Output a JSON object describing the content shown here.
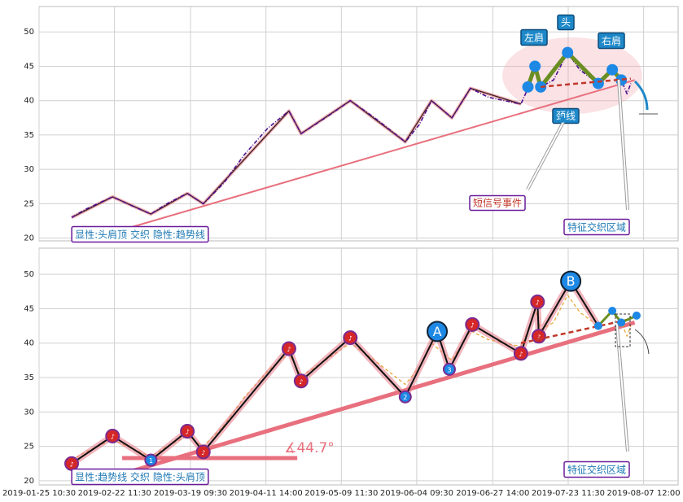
{
  "chart_data": [
    {
      "type": "line",
      "xlim": [
        0,
        100
      ],
      "ylim": [
        19.6,
        53.7
      ],
      "yticks": [
        20,
        25,
        30,
        35,
        40,
        45,
        50
      ],
      "grid": true,
      "series": [
        {
          "style": "trend",
          "color": "#e8707e",
          "x": [
            13,
            93.2
          ],
          "values": [
            21.2,
            43
          ]
        },
        {
          "style": "zigzag",
          "color": "#3a1f1f",
          "x": [
            5.1,
            11.5,
            17.5,
            23.2,
            25.7,
            39.1,
            41,
            48.7,
            57.3,
            61.4,
            64.6,
            67.5,
            75.4
          ],
          "values": [
            23,
            26,
            23.5,
            26.5,
            25,
            38.5,
            35.2,
            40,
            34,
            40,
            37.5,
            41.8,
            39.5
          ]
        },
        {
          "style": "price",
          "color": "#4b0f8c",
          "x": [
            5.1,
            7.3,
            11.5,
            14.3,
            17.5,
            20,
            23.2,
            25.7,
            28.9,
            32,
            35.8,
            39.1,
            41,
            44.8,
            48.7,
            52.5,
            57.3,
            59.5,
            61.4,
            64.6,
            67.5,
            70.3,
            75.4,
            76.6,
            77.6,
            78.5,
            80.5,
            82.7,
            84.6,
            87.5,
            89.7,
            91.1,
            92,
            92.6
          ],
          "values": [
            23,
            24.2,
            26,
            24.8,
            23.5,
            25,
            26.5,
            25,
            28,
            32,
            36,
            38.5,
            35.2,
            37.5,
            40,
            37.5,
            34,
            36.5,
            40,
            37.5,
            41.8,
            40.5,
            39.5,
            42,
            45,
            42,
            43,
            47,
            44.5,
            42.5,
            44.5,
            43,
            41,
            42.5
          ]
        },
        {
          "style": "pattern",
          "color": "#6b8e23",
          "x": [
            76.5,
            77.6,
            78.5,
            82.7,
            87.5,
            89.7,
            91.1
          ],
          "values": [
            42,
            45,
            42,
            47,
            42.5,
            44.5,
            43
          ]
        },
        {
          "style": "neckline",
          "color": "#c0392b",
          "x": [
            78.5,
            92.6
          ],
          "values": [
            42,
            43.2
          ]
        }
      ],
      "annotations": [
        {
          "text": "显性:头肩顶 交织 隐性:趋势线",
          "style": "caption"
        },
        {
          "text": "左肩",
          "style": "tag"
        },
        {
          "text": "头",
          "style": "tag"
        },
        {
          "text": "右肩",
          "style": "tag"
        },
        {
          "text": "颈线",
          "style": "tag"
        },
        {
          "text": "短信号事件",
          "style": "event"
        },
        {
          "text": "特征交织区域",
          "style": "zone"
        }
      ]
    },
    {
      "type": "line",
      "xlim": [
        0,
        100
      ],
      "ylim": [
        19.4,
        53.8
      ],
      "yticks": [
        20,
        25,
        30,
        35,
        40,
        45,
        50
      ],
      "grid": true,
      "xticks": [
        {
          "value": 0,
          "label": "2019-01-25 10:30"
        },
        {
          "value": 11.8,
          "label": "2019-02-22 11:30"
        },
        {
          "value": 23.7,
          "label": "2019-03-19 09:30"
        },
        {
          "value": 35.5,
          "label": "2019-04-11 14:00"
        },
        {
          "value": 47.3,
          "label": "2019-05-09 11:30"
        },
        {
          "value": 59.1,
          "label": "2019-06-04 09:30"
        },
        {
          "value": 71,
          "label": "2019-06-27 14:00"
        },
        {
          "value": 82.8,
          "label": "2019-07-23 11:30"
        },
        {
          "value": 94.6,
          "label": "2019-08-07 12:00"
        }
      ],
      "series": [
        {
          "style": "baseline",
          "color": "#e8707e",
          "x": [
            13,
            40.4
          ],
          "values": [
            23.3,
            23.3
          ]
        },
        {
          "style": "trend-thick",
          "color": "#e8707e",
          "x": [
            13,
            93.2
          ],
          "values": [
            21,
            43
          ]
        },
        {
          "style": "price-orange",
          "color": "#e8a838",
          "x": [
            5.1,
            7.3,
            11.5,
            14.3,
            17.5,
            20,
            23.2,
            25.7,
            28.9,
            32,
            35.8,
            39.1,
            41,
            44.8,
            48.7,
            52.5,
            57.3,
            59.5,
            61.4,
            64.6,
            67.5,
            70.3,
            75.4,
            76.6,
            77.6,
            78.5,
            80.5,
            82.7,
            84.6,
            87.5,
            89.7,
            91.1,
            92,
            92.6
          ],
          "values": [
            23,
            24.2,
            26,
            24.8,
            23.5,
            25,
            26.5,
            25,
            28,
            32,
            36,
            38.5,
            35.2,
            37.5,
            40,
            37.5,
            34,
            36.5,
            40,
            37.5,
            41.8,
            40.5,
            39.5,
            42,
            45,
            42,
            43,
            47,
            44.5,
            42.5,
            44.5,
            43,
            41,
            42.5
          ]
        },
        {
          "style": "zigzag-marked",
          "color": "#111111",
          "x": [
            5.1,
            11.5,
            17.5,
            23.2,
            25.7,
            39.1,
            41,
            48.7,
            57.3,
            62.3,
            64.2,
            67.8,
            75.4,
            78,
            78.2,
            83.2,
            87.5
          ],
          "values": [
            22.5,
            26.5,
            23,
            27.2,
            24.2,
            39.2,
            34.5,
            40.8,
            32.2,
            41.7,
            36.2,
            42.7,
            38.5,
            46,
            41,
            49,
            42.5
          ],
          "point_labels": [
            "♪",
            "♪",
            "1",
            "♪",
            "♪",
            "♪",
            "♪",
            "♪",
            "2",
            "A",
            "3",
            "♪",
            "♪",
            "♪",
            "♪",
            "B",
            null
          ]
        },
        {
          "style": "neckline",
          "color": "#c0392b",
          "x": [
            75.4,
            92.6
          ],
          "values": [
            40,
            43.5
          ]
        },
        {
          "style": "pattern-small",
          "color": "#6b8e23",
          "x": [
            87.5,
            89.7,
            91.1,
            93.5
          ],
          "values": [
            42.5,
            44.7,
            43,
            44
          ]
        }
      ],
      "annotations": [
        {
          "text": "显性:趋势线 交织 隐性:头肩顶",
          "style": "caption"
        },
        {
          "text": "∡44.7°",
          "style": "angle"
        },
        {
          "text": "特征交织区域",
          "style": "zone"
        }
      ]
    }
  ]
}
